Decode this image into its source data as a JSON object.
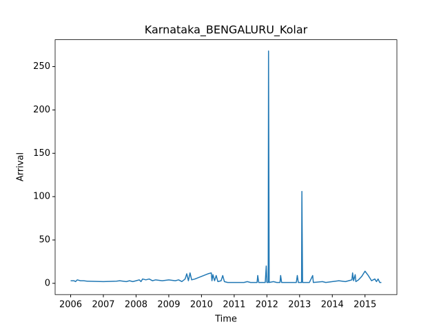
{
  "chart_data": {
    "type": "line",
    "title": "Karnataka_BENGALURU_Kolar",
    "xlabel": "Time",
    "ylabel": "Arrival",
    "color": "#1f77b4",
    "x": [
      2006.0,
      2006.1,
      2006.15,
      2006.2,
      2006.3,
      2006.4,
      2006.5,
      2007.0,
      2007.4,
      2007.5,
      2007.7,
      2007.8,
      2007.9,
      2008.0,
      2008.1,
      2008.15,
      2008.2,
      2008.3,
      2008.4,
      2008.5,
      2008.6,
      2008.8,
      2009.0,
      2009.2,
      2009.3,
      2009.4,
      2009.5,
      2009.55,
      2009.6,
      2009.65,
      2009.7,
      2009.8,
      2010.0,
      2010.2,
      2010.3,
      2010.32,
      2010.35,
      2010.4,
      2010.45,
      2010.5,
      2010.6,
      2010.65,
      2010.7,
      2010.8,
      2011.0,
      2011.3,
      2011.4,
      2011.5,
      2011.7,
      2011.72,
      2011.75,
      2011.95,
      2011.98,
      2012.0,
      2012.04,
      2012.05,
      2012.07,
      2012.2,
      2012.3,
      2012.4,
      2012.42,
      2012.45,
      2012.9,
      2012.93,
      2012.96,
      2013.06,
      2013.07,
      2013.09,
      2013.3,
      2013.4,
      2013.42,
      2013.7,
      2013.8,
      2014.0,
      2014.2,
      2014.4,
      2014.6,
      2014.62,
      2014.65,
      2014.7,
      2014.72,
      2014.8,
      2014.9,
      2015.0,
      2015.1,
      2015.2,
      2015.3,
      2015.35,
      2015.4,
      2015.45,
      2015.5
    ],
    "values": [
      3,
      3,
      2,
      4,
      3,
      3,
      2.5,
      2,
      2.5,
      3,
      2,
      3,
      2,
      3,
      4,
      2,
      5,
      4,
      5,
      3,
      4,
      3,
      4,
      3,
      4,
      2,
      5,
      11,
      3,
      12,
      4,
      5,
      8,
      11,
      12,
      3,
      10,
      3,
      9,
      2,
      3,
      9,
      2,
      1,
      1,
      1,
      2,
      1,
      1,
      9,
      1,
      1,
      20,
      1,
      1,
      268,
      1,
      2,
      1,
      1,
      9,
      1,
      1,
      9,
      1,
      1,
      106,
      1,
      1,
      9,
      1,
      2,
      1,
      2,
      3,
      2,
      4,
      12,
      3,
      10,
      2,
      4,
      8,
      14,
      9,
      3,
      5,
      2,
      5,
      1,
      1
    ],
    "xlim": [
      2005.525,
      2015.975
    ],
    "xticks": [
      2006,
      2007,
      2008,
      2009,
      2010,
      2011,
      2012,
      2013,
      2014,
      2015
    ],
    "ylim": [
      -13,
      281
    ],
    "yticks": [
      0,
      50,
      100,
      150,
      200,
      250
    ]
  }
}
